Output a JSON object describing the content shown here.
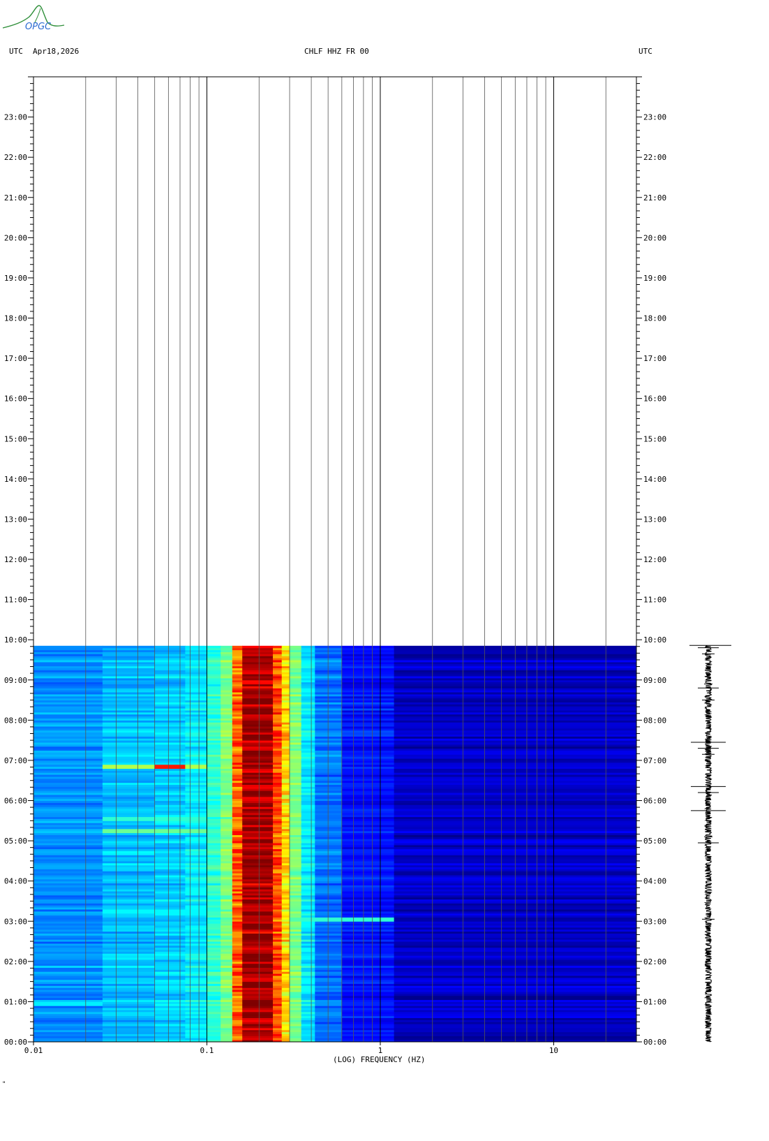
{
  "logo": {
    "text": "OPGC",
    "colors": {
      "text": "#2a6bd1",
      "swoosh": "#2f8f3a"
    }
  },
  "header": {
    "left_tz": "UTC",
    "date": "Apr18,2026",
    "station": "CHLF HHZ FR 00",
    "right_tz": "UTC"
  },
  "footer_mark": "\"",
  "chart_data": {
    "type": "heatmap",
    "title": "CHLF HHZ FR 00",
    "xlabel": "(LOG) FREQUENCY (HZ)",
    "ylabel": "",
    "x_scale": "log",
    "xlim": [
      0.01,
      30
    ],
    "x_ticks": [
      {
        "value": 0.01,
        "label": "0.01"
      },
      {
        "value": 0.1,
        "label": "0.1"
      },
      {
        "value": 1,
        "label": "1"
      },
      {
        "value": 10,
        "label": "10"
      }
    ],
    "x_gridlines": [
      0.02,
      0.03,
      0.04,
      0.05,
      0.06,
      0.07,
      0.08,
      0.09,
      0.1,
      0.2,
      0.3,
      0.4,
      0.5,
      0.6,
      0.7,
      0.8,
      0.9,
      1,
      2,
      3,
      4,
      5,
      6,
      7,
      8,
      9,
      10,
      20
    ],
    "ylim": [
      "00:00",
      "24:00"
    ],
    "y_ticks": [
      "00:00",
      "01:00",
      "02:00",
      "03:00",
      "04:00",
      "05:00",
      "06:00",
      "07:00",
      "08:00",
      "09:00",
      "10:00",
      "11:00",
      "12:00",
      "13:00",
      "14:00",
      "15:00",
      "16:00",
      "17:00",
      "18:00",
      "19:00",
      "20:00",
      "21:00",
      "22:00",
      "23:00"
    ],
    "data_end_hour": 9.86,
    "colormap": [
      "#00007f",
      "#0000ff",
      "#007fff",
      "#00ffff",
      "#7fff7f",
      "#ffff00",
      "#ff7f00",
      "#ff0000",
      "#7f0000"
    ],
    "frequency_bands": [
      {
        "f_lo": 0.01,
        "f_hi": 0.025,
        "level": 0.27
      },
      {
        "f_lo": 0.025,
        "f_hi": 0.05,
        "level": 0.31
      },
      {
        "f_lo": 0.05,
        "f_hi": 0.075,
        "level": 0.33
      },
      {
        "f_lo": 0.075,
        "f_hi": 0.1,
        "level": 0.36
      },
      {
        "f_lo": 0.1,
        "f_hi": 0.12,
        "level": 0.42
      },
      {
        "f_lo": 0.12,
        "f_hi": 0.14,
        "level": 0.5
      },
      {
        "f_lo": 0.14,
        "f_hi": 0.16,
        "level": 0.78
      },
      {
        "f_lo": 0.16,
        "f_hi": 0.24,
        "level": 0.96
      },
      {
        "f_lo": 0.24,
        "f_hi": 0.27,
        "level": 0.8
      },
      {
        "f_lo": 0.27,
        "f_hi": 0.3,
        "level": 0.66
      },
      {
        "f_lo": 0.3,
        "f_hi": 0.35,
        "level": 0.5
      },
      {
        "f_lo": 0.35,
        "f_hi": 0.42,
        "level": 0.36
      },
      {
        "f_lo": 0.42,
        "f_hi": 0.6,
        "level": 0.24
      },
      {
        "f_lo": 0.6,
        "f_hi": 1.2,
        "level": 0.14
      },
      {
        "f_lo": 1.2,
        "f_hi": 30,
        "level": 0.07
      }
    ],
    "events": [
      {
        "hour": 6.85,
        "f_lo": 0.025,
        "f_hi": 0.1,
        "level": 0.55,
        "peak_f": 0.06,
        "peak_level": 0.85
      },
      {
        "hour": 5.55,
        "f_lo": 0.025,
        "f_hi": 0.1,
        "level": 0.42
      },
      {
        "hour": 5.25,
        "f_lo": 0.025,
        "f_hi": 0.1,
        "level": 0.48
      },
      {
        "hour": 3.25,
        "f_lo": 0.025,
        "f_hi": 0.1,
        "level": 0.37
      },
      {
        "hour": 3.05,
        "f_lo": 0.3,
        "f_hi": 1.1,
        "level": 0.42
      },
      {
        "hour": 0.95,
        "f_lo": 0.01,
        "f_hi": 0.025,
        "level": 0.36
      }
    ],
    "seismogram": {
      "spike_hours": [
        9.8,
        9.65,
        8.9,
        8.8,
        8.5,
        7.45,
        7.3,
        7.15,
        6.35,
        6.2,
        5.75,
        5.1,
        4.95,
        3.05
      ]
    }
  }
}
